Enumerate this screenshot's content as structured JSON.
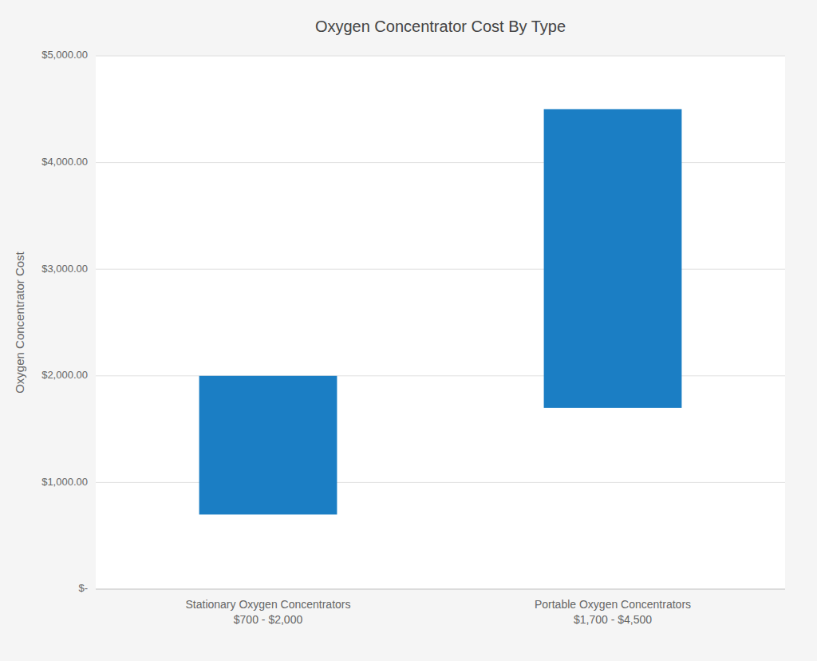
{
  "chart_data": {
    "type": "bar",
    "title": "Oxygen Concentrator Cost By Type",
    "ylabel": "Oxygen Concentrator Cost",
    "categories": [
      "Stationary Oxygen Concentrators\n$700 - $2,000",
      "Portable Oxygen Concentrators\n$1,700 - $4,500"
    ],
    "values": [
      [
        700,
        2000
      ],
      [
        1700,
        4500
      ]
    ],
    "color": "#1B7EC4",
    "ylim": [
      0,
      5000
    ],
    "yticks": [
      {
        "value": 0,
        "label": "$-"
      },
      {
        "value": 1000,
        "label": "$1,000.00"
      },
      {
        "value": 2000,
        "label": "$2,000.00"
      },
      {
        "value": 3000,
        "label": "$3,000.00"
      },
      {
        "value": 4000,
        "label": "$4,000.00"
      },
      {
        "value": 5000,
        "label": "$5,000.00"
      }
    ],
    "grid": true
  }
}
